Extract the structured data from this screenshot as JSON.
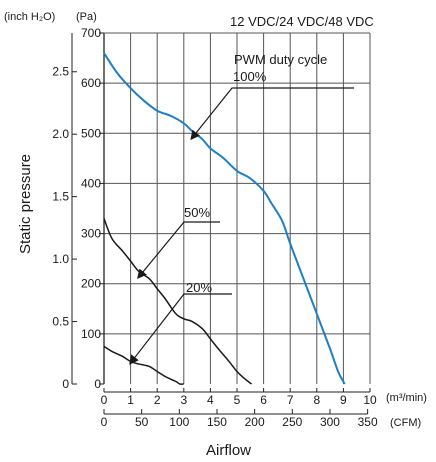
{
  "chart_data": {
    "type": "line",
    "title": "12 VDC/24 VDC/48 VDC",
    "xlabel": "Airflow",
    "ylabel": "Static pressure",
    "x_unit_primary": "(m³/min)",
    "x_unit_secondary": "(CFM)",
    "y_unit_primary": "(Pa)",
    "y_unit_secondary": "(inch H₂O)",
    "xlim": [
      0,
      10
    ],
    "ylim": [
      0,
      700
    ],
    "grid": true,
    "x_ticks": [
      "0",
      "1",
      "2",
      "3",
      "4",
      "5",
      "6",
      "7",
      "8",
      "9",
      "10"
    ],
    "x2_ticks": [
      "0",
      "50",
      "100",
      "150",
      "200",
      "250",
      "300",
      "350"
    ],
    "x2_values": [
      0,
      50,
      100,
      150,
      200,
      250,
      300,
      350
    ],
    "y_ticks": [
      "0",
      "100",
      "200",
      "300",
      "400",
      "500",
      "600",
      "700"
    ],
    "y2_ticks": [
      "0",
      "0.5",
      "1.0",
      "1.5",
      "2.0",
      "2.5"
    ],
    "y2_values": [
      0,
      0.5,
      1.0,
      1.5,
      2.0,
      2.5
    ],
    "series": [
      {
        "x": [
          0,
          0.5,
          1,
          1.5,
          2,
          2.5,
          3,
          3.3,
          3.7,
          4,
          4.5,
          5,
          5.5,
          6,
          6.3,
          6.7,
          7,
          7.5,
          8,
          8.5,
          8.8,
          9.05
        ],
        "y": [
          660,
          620,
          590,
          565,
          545,
          535,
          520,
          505,
          488,
          470,
          450,
          425,
          410,
          385,
          360,
          325,
          280,
          210,
          140,
          70,
          25,
          0
        ]
      },
      {
        "x": [
          0,
          0.3,
          0.7,
          1,
          1.3,
          1.7,
          2,
          2.3,
          2.7,
          3,
          3.3,
          3.7,
          4,
          4.3,
          4.7,
          5,
          5.3,
          5.55
        ],
        "y": [
          330,
          290,
          265,
          245,
          225,
          210,
          190,
          170,
          140,
          130,
          125,
          110,
          90,
          70,
          45,
          25,
          10,
          0
        ]
      },
      {
        "x": [
          0,
          0.3,
          0.7,
          1,
          1.3,
          1.7,
          2,
          2.3,
          2.7,
          2.85,
          3
        ],
        "y": [
          75,
          65,
          55,
          45,
          40,
          35,
          25,
          15,
          5,
          0,
          0
        ]
      }
    ],
    "series_colors": [
      "#1f7fc4",
      "#1a1a1a",
      "#1a1a1a"
    ],
    "annotations": {
      "pwm_label": "PWM duty cycle",
      "label_100": "100%",
      "label_50": "50%",
      "label_20": "20%"
    }
  }
}
